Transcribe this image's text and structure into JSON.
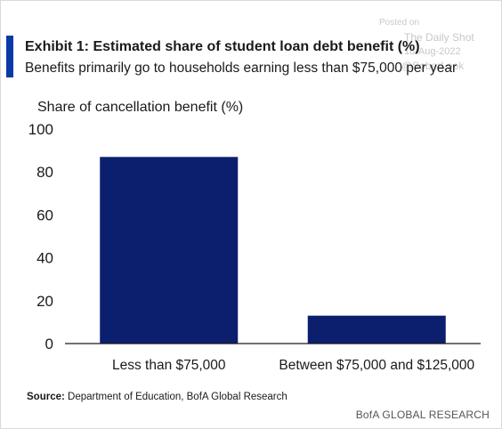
{
  "watermark": {
    "line1": "Posted on",
    "line2": "The Daily Shot",
    "line3": "18-Aug-2022",
    "line4": "@SoberLook"
  },
  "header": {
    "title": "Exhibit 1: Estimated share of student loan debt benefit (%)",
    "subtitle": "Benefits primarily go to households earning less than $75,000 per year"
  },
  "chart_data": {
    "type": "bar",
    "title": "Exhibit 1: Estimated share of student loan debt benefit (%)",
    "subtitle": "Benefits primarily go to households earning less than $75,000 per year",
    "ylabel": "Share of cancellation benefit (%)",
    "xlabel": "",
    "categories": [
      "Less than $75,000",
      "Between $75,000 and $125,000"
    ],
    "values": [
      87,
      13
    ],
    "ylim": [
      0,
      100
    ],
    "yticks": [
      0,
      20,
      40,
      60,
      80,
      100
    ],
    "grid": false,
    "bar_color": "#0c1f6e"
  },
  "footer": {
    "source_label": "Source:",
    "source_text": "Department of Education,  BofA Global Research",
    "brand": "BofA GLOBAL RESEARCH"
  }
}
